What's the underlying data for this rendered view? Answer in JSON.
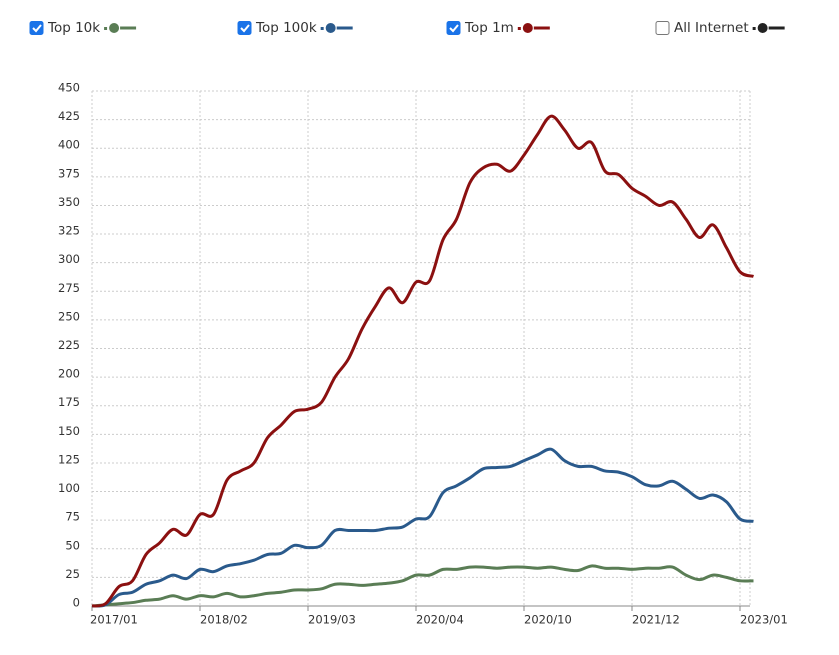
{
  "chart_data": {
    "type": "line",
    "categories": [
      "2017/01",
      null,
      null,
      null,
      null,
      null,
      null,
      null,
      "2018/02",
      null,
      null,
      null,
      null,
      null,
      null,
      null,
      "2019/03",
      null,
      null,
      null,
      null,
      null,
      null,
      null,
      "2020/04",
      null,
      null,
      null,
      null,
      null,
      null,
      null,
      "2020/10",
      null,
      null,
      null,
      null,
      null,
      null,
      null,
      "2021/12",
      null,
      null,
      null,
      null,
      null,
      null,
      null,
      "2023/01",
      null
    ],
    "series": [
      {
        "name": "Top 10k",
        "color": "#5a7d55",
        "visible": true,
        "values": [
          0,
          1,
          2,
          3,
          5,
          6,
          9,
          6,
          9,
          8,
          11,
          8,
          9,
          11,
          12,
          14,
          14,
          15,
          19,
          19,
          18,
          19,
          20,
          22,
          27,
          27,
          32,
          32,
          34,
          34,
          33,
          34,
          34,
          33,
          34,
          32,
          31,
          35,
          33,
          33,
          32,
          33,
          33,
          34,
          27,
          23,
          27,
          25,
          22,
          22
        ]
      },
      {
        "name": "Top 100k",
        "color": "#2a5a8c",
        "visible": true,
        "values": [
          0,
          1,
          10,
          12,
          19,
          22,
          27,
          24,
          32,
          30,
          35,
          37,
          40,
          45,
          46,
          53,
          51,
          53,
          66,
          66,
          66,
          66,
          68,
          69,
          76,
          78,
          99,
          105,
          112,
          120,
          121,
          122,
          127,
          132,
          137,
          127,
          122,
          122,
          118,
          117,
          113,
          106,
          105,
          109,
          102,
          94,
          97,
          91,
          76,
          74
        ]
      },
      {
        "name": "Top 1m",
        "color": "#8b1010",
        "visible": true,
        "values": [
          0,
          2,
          17,
          22,
          45,
          55,
          67,
          62,
          80,
          80,
          110,
          118,
          125,
          147,
          158,
          170,
          172,
          178,
          200,
          216,
          242,
          262,
          278,
          265,
          283,
          284,
          320,
          338,
          370,
          383,
          386,
          380,
          394,
          412,
          428,
          416,
          400,
          405,
          380,
          377,
          365,
          358,
          350,
          353,
          338,
          322,
          333,
          313,
          292,
          288
        ]
      },
      {
        "name": "All Internet",
        "color": "#222222",
        "visible": false
      }
    ],
    "ylim": [
      0,
      450
    ],
    "yticks": [
      0,
      25,
      50,
      75,
      100,
      125,
      150,
      175,
      200,
      225,
      250,
      275,
      300,
      325,
      350,
      375,
      400,
      425,
      450
    ],
    "grid": true
  }
}
